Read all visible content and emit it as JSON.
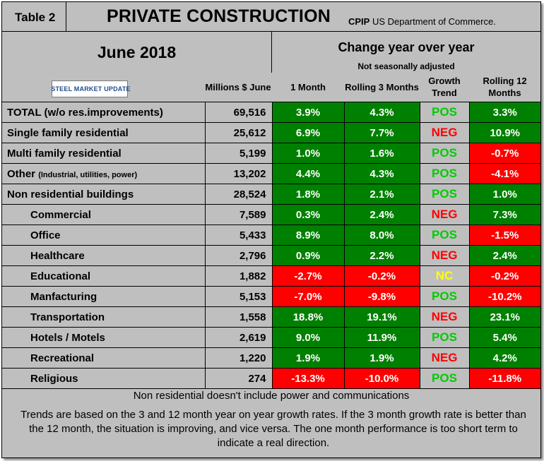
{
  "header": {
    "table_label": "Table 2",
    "title": "PRIVATE CONSTRUCTION",
    "title_suffix": "CPIP",
    "source": "US Department of Commerce."
  },
  "period": "June 2018",
  "change_title": "Change year over year",
  "seasonal_note": "Not seasonally adjusted",
  "logo_text": "STEEL MARKET UPDATE",
  "columns": {
    "millions": "Millions $ June",
    "one_month": "1 Month",
    "rolling3": "Rolling 3 Months",
    "trend": "Growth Trend",
    "rolling12": "Rolling 12 Months"
  },
  "colors": {
    "positive": "#008000",
    "negative": "#ff0000",
    "trend_pos": "#00cc00",
    "trend_neg": "#ff0000",
    "trend_nc": "#ffff00",
    "panel": "#bfbfbf"
  },
  "rows": [
    {
      "label": "TOTAL (w/o res.improvements)",
      "note": "",
      "indent": false,
      "millions": "69,516",
      "one_month": "3.9%",
      "rolling3": "4.3%",
      "trend": "POS",
      "rolling12": "3.3%"
    },
    {
      "label": "Single family residential",
      "note": "",
      "indent": false,
      "millions": "25,612",
      "one_month": "6.9%",
      "rolling3": "7.7%",
      "trend": "NEG",
      "rolling12": "10.9%"
    },
    {
      "label": "Multi family residential",
      "note": "",
      "indent": false,
      "millions": "5,199",
      "one_month": "1.0%",
      "rolling3": "1.6%",
      "trend": "POS",
      "rolling12": "-0.7%"
    },
    {
      "label": "Other",
      "note": "(Industrial, utilities, power)",
      "indent": false,
      "millions": "13,202",
      "one_month": "4.4%",
      "rolling3": "4.3%",
      "trend": "POS",
      "rolling12": "-4.1%"
    },
    {
      "label": "Non residential buildings",
      "note": "",
      "indent": false,
      "millions": "28,524",
      "one_month": "1.8%",
      "rolling3": "2.1%",
      "trend": "POS",
      "rolling12": "1.0%"
    },
    {
      "label": "Commercial",
      "note": "",
      "indent": true,
      "millions": "7,589",
      "one_month": "0.3%",
      "rolling3": "2.4%",
      "trend": "NEG",
      "rolling12": "7.3%"
    },
    {
      "label": "Office",
      "note": "",
      "indent": true,
      "millions": "5,433",
      "one_month": "8.9%",
      "rolling3": "8.0%",
      "trend": "POS",
      "rolling12": "-1.5%"
    },
    {
      "label": "Healthcare",
      "note": "",
      "indent": true,
      "millions": "2,796",
      "one_month": "0.9%",
      "rolling3": "2.2%",
      "trend": "NEG",
      "rolling12": "2.4%"
    },
    {
      "label": "Educational",
      "note": "",
      "indent": true,
      "millions": "1,882",
      "one_month": "-2.7%",
      "rolling3": "-0.2%",
      "trend": "NC",
      "rolling12": "-0.2%"
    },
    {
      "label": "Manfacturing",
      "note": "",
      "indent": true,
      "millions": "5,153",
      "one_month": "-7.0%",
      "rolling3": "-9.8%",
      "trend": "POS",
      "rolling12": "-10.2%"
    },
    {
      "label": "Transportation",
      "note": "",
      "indent": true,
      "millions": "1,558",
      "one_month": "18.8%",
      "rolling3": "19.1%",
      "trend": "NEG",
      "rolling12": "23.1%"
    },
    {
      "label": "Hotels / Motels",
      "note": "",
      "indent": true,
      "millions": "2,619",
      "one_month": "9.0%",
      "rolling3": "11.9%",
      "trend": "POS",
      "rolling12": "5.4%"
    },
    {
      "label": "Recreational",
      "note": "",
      "indent": true,
      "millions": "1,220",
      "one_month": "1.9%",
      "rolling3": "1.9%",
      "trend": "NEG",
      "rolling12": "4.2%"
    },
    {
      "label": "Religious",
      "note": "",
      "indent": true,
      "millions": "274",
      "one_month": "-13.3%",
      "rolling3": "-10.0%",
      "trend": "POS",
      "rolling12": "-11.8%"
    }
  ],
  "footnote": "Non residential doesn't include power and communications",
  "explanation": "Trends are based on the 3 and 12 month year on year growth rates. If the 3 month growth rate is better than the 12 month, the situation is improving, and vice versa. The one month performance is too short term to indicate a real direction."
}
